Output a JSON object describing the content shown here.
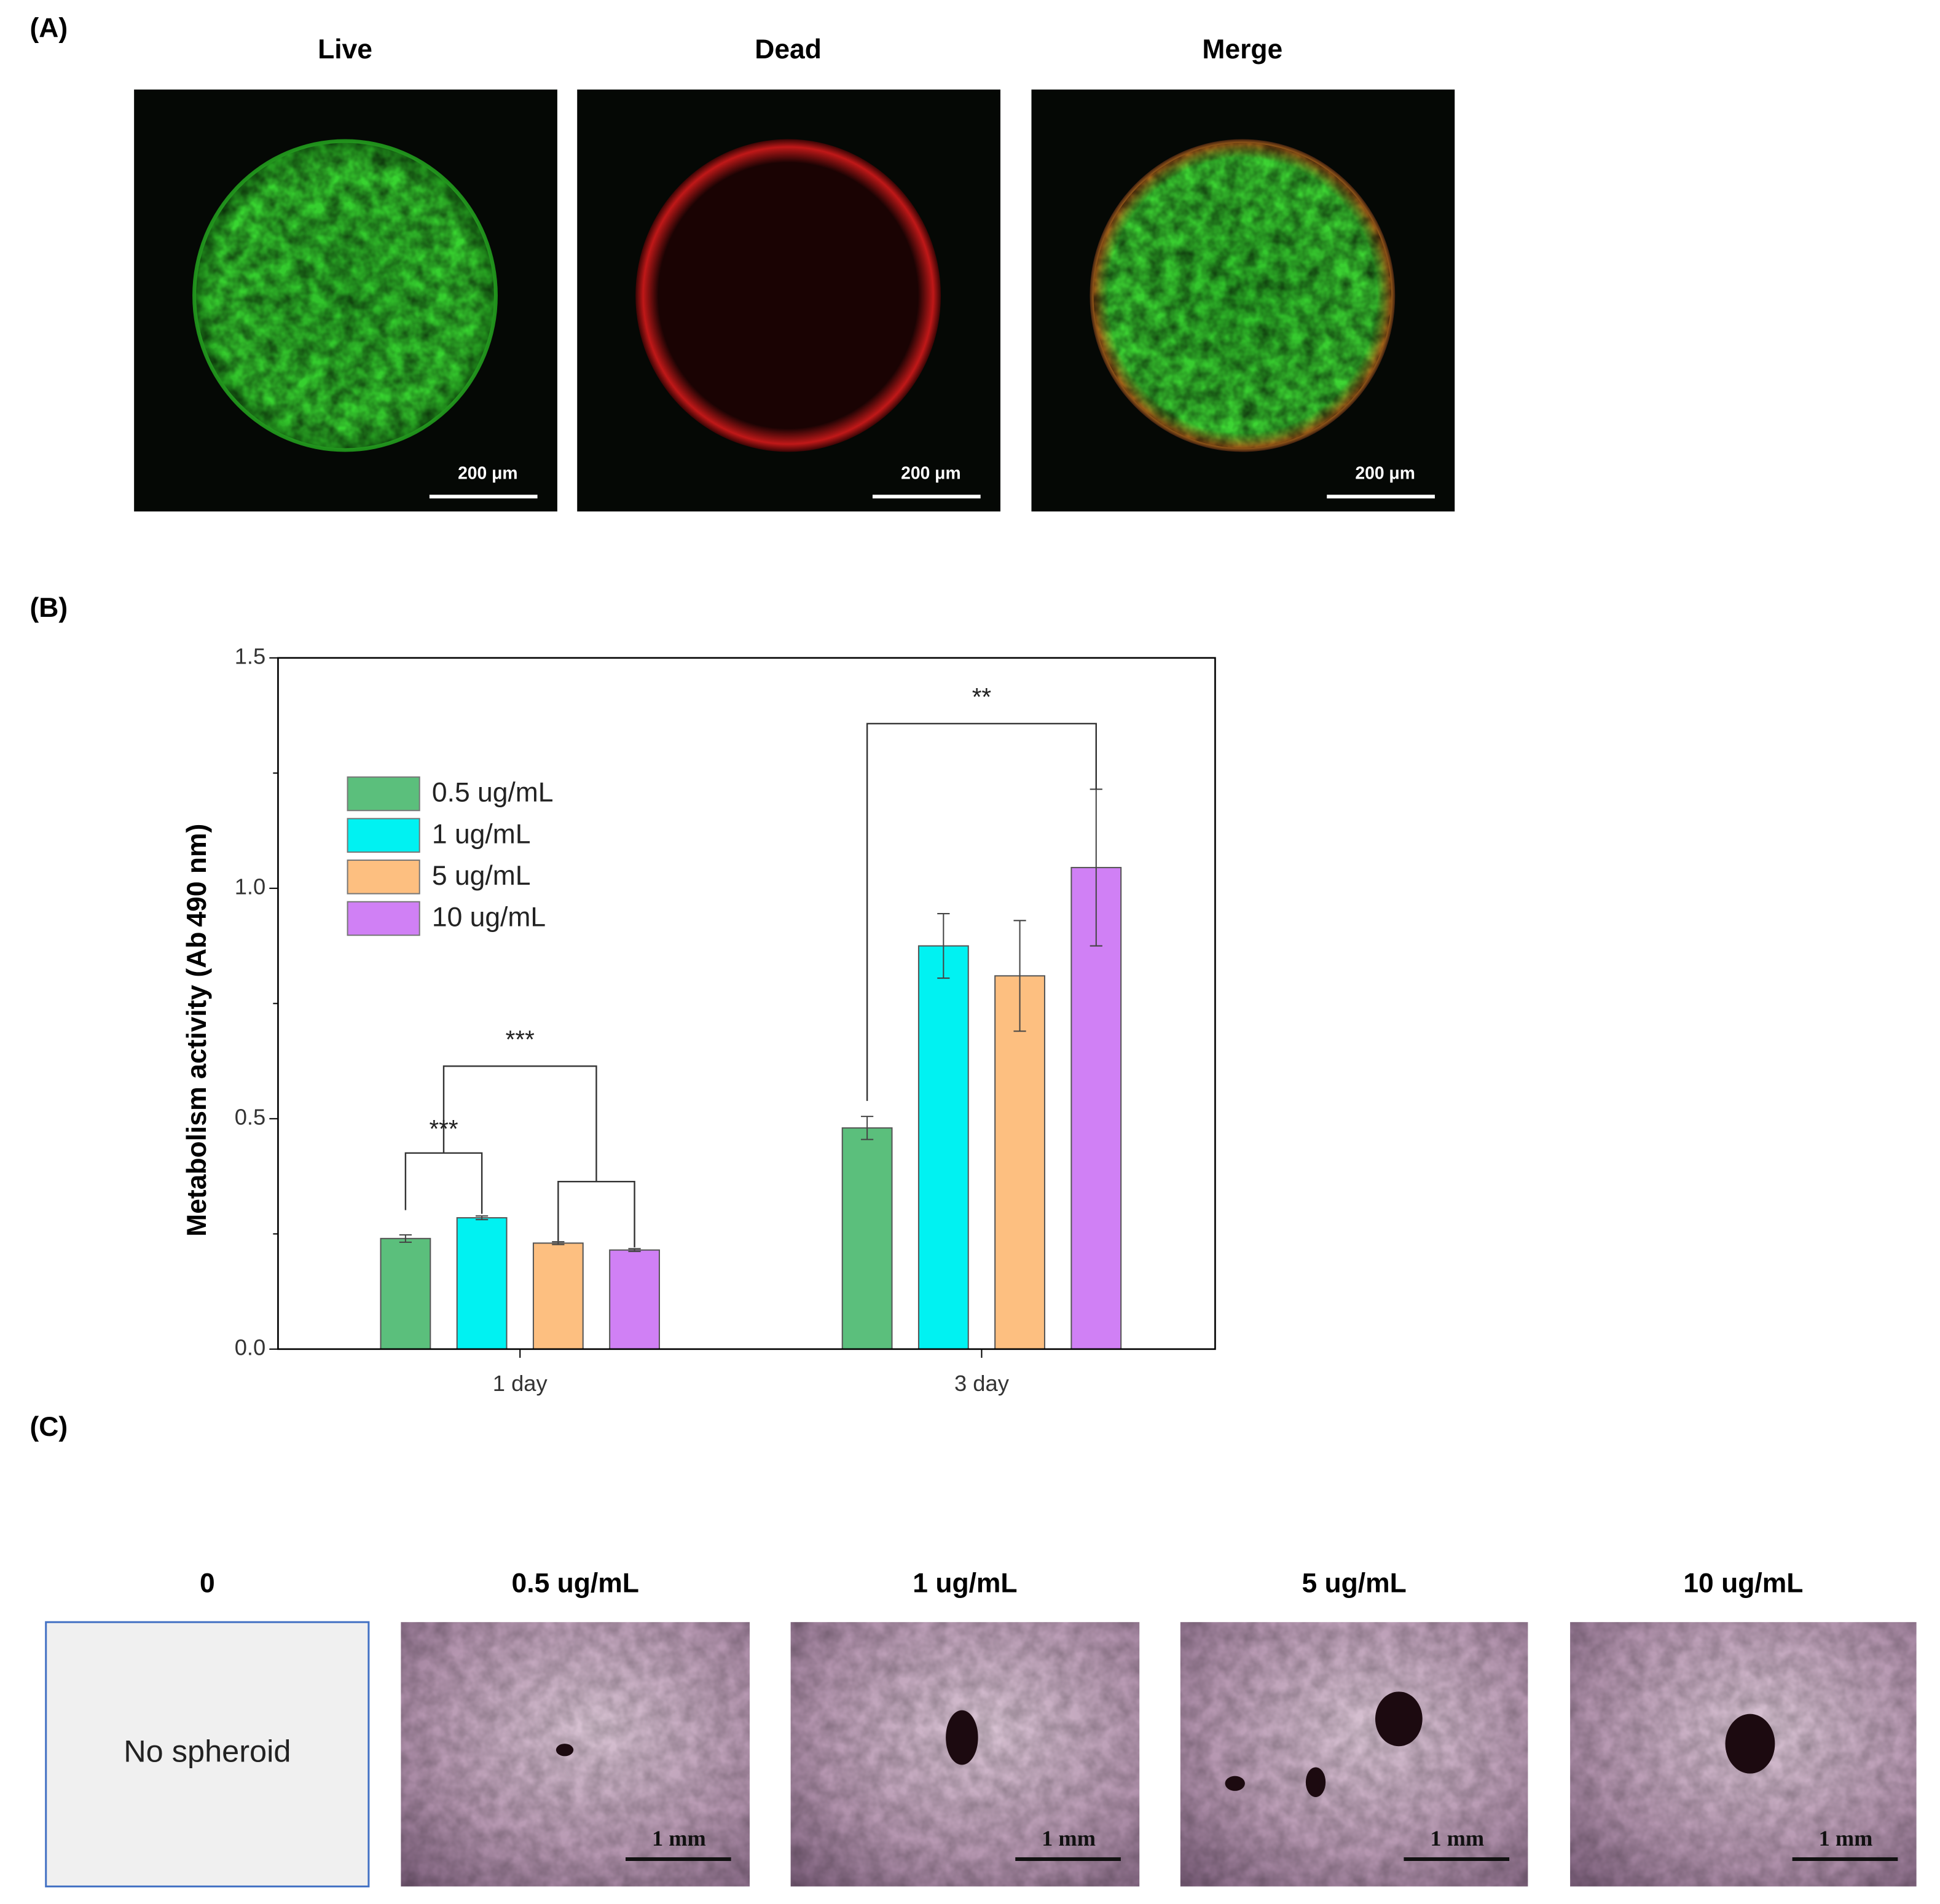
{
  "panels": {
    "a": "(A)",
    "b": "(B)",
    "c": "(C)"
  },
  "live_dead": {
    "titles": [
      "Live",
      "Dead",
      "Merge"
    ],
    "scale_bar": "200 μm"
  },
  "chart_data": {
    "type": "bar",
    "categories": [
      "1 day",
      "3 day"
    ],
    "series": [
      {
        "name": "0.5 ug/mL",
        "color": "#5bbf7c",
        "values": [
          0.24,
          0.48
        ],
        "errors": [
          0.008,
          0.025
        ]
      },
      {
        "name": "1 ug/mL",
        "color": "#00f2f2",
        "values": [
          0.285,
          0.875
        ],
        "errors": [
          0.004,
          0.07
        ]
      },
      {
        "name": "5 ug/mL",
        "color": "#fdbf80",
        "values": [
          0.23,
          0.81
        ],
        "errors": [
          0.003,
          0.12
        ]
      },
      {
        "name": "10 ug/mL",
        "color": "#d080f5",
        "values": [
          0.215,
          1.045
        ],
        "errors": [
          0.003,
          0.17
        ]
      }
    ],
    "ylim": [
      0,
      1.5
    ],
    "yticks": [
      {
        "value": 0,
        "label": "0.0"
      },
      0.5,
      {
        "value": 1,
        "label": "1.0"
      },
      1.5
    ],
    "y_label": "Metabolism activity (Ab",
    "y_label_sub": "490 nm",
    "y_label_end": ")",
    "annotations": [
      "***",
      "***",
      "**"
    ]
  },
  "spheroids": {
    "titles": [
      "0",
      "0.5 ug/mL",
      "1 ug/mL",
      "5 ug/mL",
      "10 ug/mL"
    ],
    "empty_note": "No spheroid",
    "scale_bar": "1 mm"
  }
}
